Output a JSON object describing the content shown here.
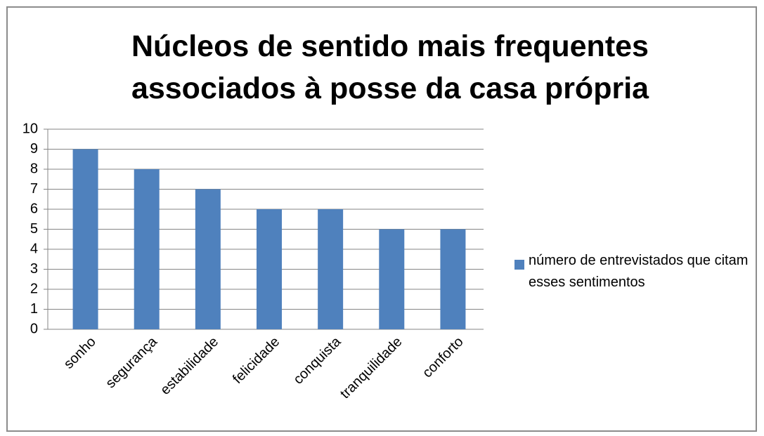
{
  "chart_data": {
    "type": "bar",
    "title": "Núcleos de sentido mais frequentes associados à posse da casa própria",
    "categories": [
      "sonho",
      "segurança",
      "estabilidade",
      "felicidade",
      "conquista",
      "tranquilidade",
      "conforto"
    ],
    "series": [
      {
        "name": "número de entrevistados que citam esses sentimentos",
        "color": "#4f81bd",
        "values": [
          9,
          8,
          7,
          6,
          6,
          5,
          5
        ]
      }
    ],
    "ylim": [
      0,
      10
    ],
    "yticks": [
      0,
      1,
      2,
      3,
      4,
      5,
      6,
      7,
      8,
      9,
      10
    ],
    "grid": true,
    "legend": "right"
  }
}
